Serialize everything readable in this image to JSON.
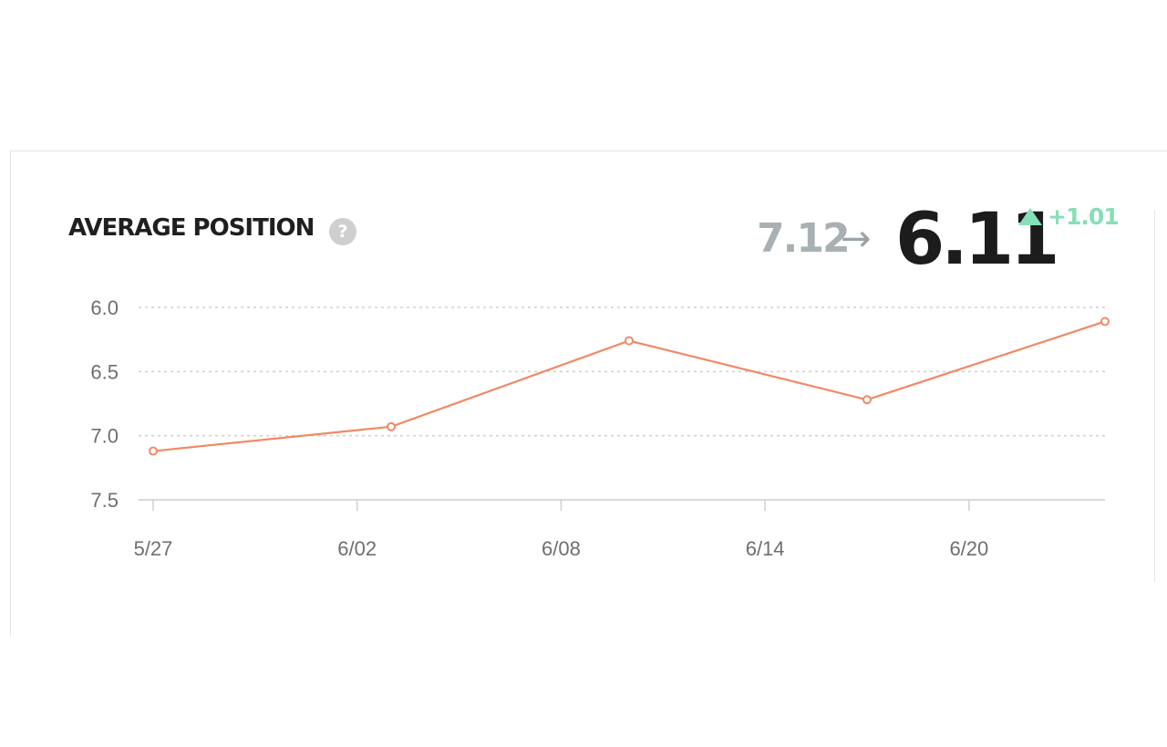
{
  "header": {
    "title": "AVERAGE POSITION",
    "help_icon": "question-mark-icon",
    "help_glyph": "?"
  },
  "metric": {
    "previous": "7.12",
    "arrow": "→",
    "current": "6.11",
    "delta": "+1.01",
    "delta_icon": "triangle-up-icon",
    "delta_color": "#86dfb6"
  },
  "chart_data": {
    "type": "line",
    "title": "AVERAGE POSITION",
    "xlabel": "",
    "ylabel": "",
    "x_tick_labels": [
      "5/27",
      "6/02",
      "6/08",
      "6/14",
      "6/20"
    ],
    "y_tick_labels": [
      "6.0",
      "6.5",
      "7.0",
      "7.5"
    ],
    "y_ticks": [
      6.0,
      6.5,
      7.0,
      7.5
    ],
    "ylim": [
      6.0,
      7.5
    ],
    "y_inverted": true,
    "xlim": [
      "5/27",
      "6/24"
    ],
    "series": [
      {
        "color": "#ef8a66",
        "points": [
          {
            "x": "5/27",
            "y": 7.12
          },
          {
            "x": "6/03",
            "y": 6.93
          },
          {
            "x": "6/10",
            "y": 6.26
          },
          {
            "x": "6/17",
            "y": 6.72
          },
          {
            "x": "6/24",
            "y": 6.11
          }
        ]
      }
    ],
    "grid": true,
    "legend": "none"
  }
}
